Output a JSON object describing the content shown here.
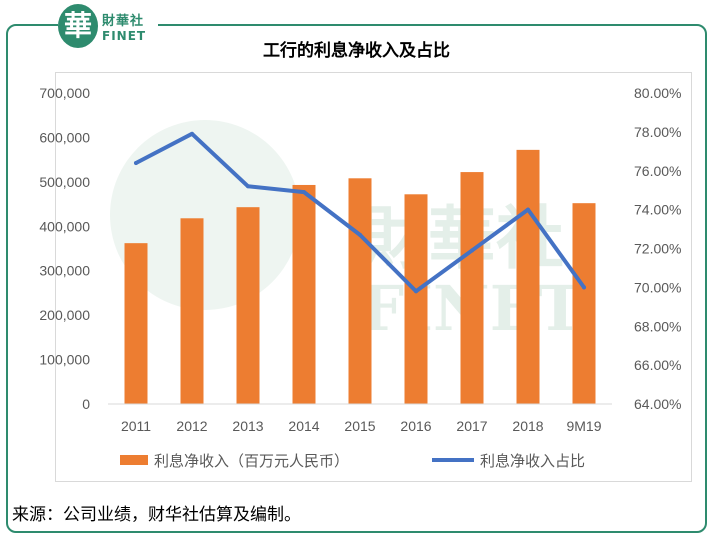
{
  "logo": {
    "mark": "華",
    "cn": "財華社",
    "en": "FINET"
  },
  "watermark": {
    "cn": "財華社",
    "en": "FINET"
  },
  "source": "来源：公司业绩，财华社估算及编制。",
  "colors": {
    "bar": "#ed7d31",
    "line": "#4472c4",
    "frame": "#2e8b6e"
  },
  "chart_data": {
    "type": "bar",
    "title": "工行的利息净收入及占比",
    "categories": [
      "2011",
      "2012",
      "2013",
      "2014",
      "2015",
      "2016",
      "2017",
      "2018",
      "9M19"
    ],
    "series": [
      {
        "name": "利息净收入（百万元人民币）",
        "type": "bar",
        "axis": "left",
        "values": [
          362000,
          418000,
          443000,
          493000,
          508000,
          472000,
          522000,
          572000,
          452000
        ]
      },
      {
        "name": "利息净收入占比",
        "type": "line",
        "axis": "right",
        "values": [
          76.4,
          77.9,
          75.2,
          74.9,
          72.7,
          69.8,
          71.9,
          74.0,
          70.0
        ]
      }
    ],
    "y_left": {
      "min": 0,
      "max": 700000,
      "step": 100000,
      "ticks": [
        "0",
        "100,000",
        "200,000",
        "300,000",
        "400,000",
        "500,000",
        "600,000",
        "700,000"
      ]
    },
    "y_right": {
      "min": 64,
      "max": 80,
      "step": 2,
      "ticks": [
        "64.00%",
        "66.00%",
        "68.00%",
        "70.00%",
        "72.00%",
        "74.00%",
        "76.00%",
        "78.00%",
        "80.00%"
      ]
    },
    "legend_position": "bottom",
    "grid": false
  }
}
